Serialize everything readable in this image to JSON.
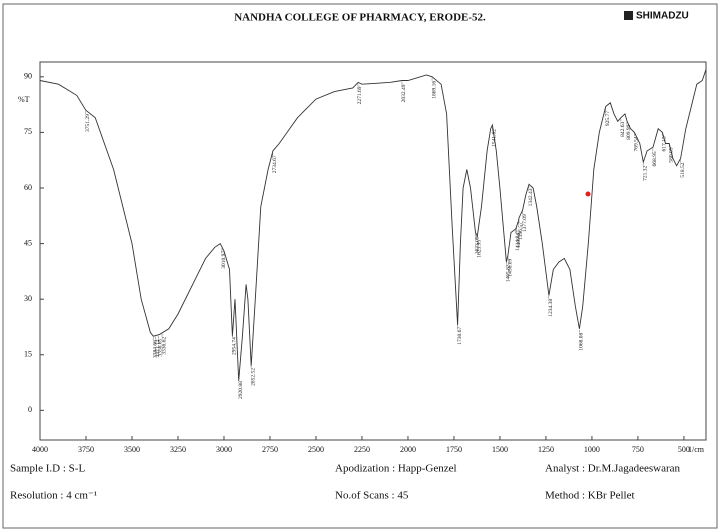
{
  "header": {
    "title": "NANDHA COLLEGE OF PHARMACY, ERODE-52.",
    "brand": "SHIMADZU"
  },
  "chart_data": {
    "type": "line",
    "y_label": "%T",
    "x_label": "1/cm",
    "color": "#333333",
    "x": [
      4000,
      3900,
      3850,
      3800,
      3751,
      3700,
      3600,
      3500,
      3450,
      3400,
      3384,
      3350,
      3300,
      3250,
      3200,
      3150,
      3100,
      3050,
      3020,
      3000,
      2970,
      2954,
      2940,
      2920,
      2900,
      2880,
      2870,
      2852,
      2830,
      2800,
      2760,
      2734,
      2700,
      2600,
      2500,
      2400,
      2300,
      2271,
      2250,
      2100,
      2032,
      2000,
      1900,
      1869,
      1820,
      1790,
      1760,
      1730,
      1715,
      1700,
      1680,
      1660,
      1633,
      1623,
      1600,
      1570,
      1550,
      1541,
      1520,
      1500,
      1465,
      1456,
      1440,
      1414,
      1400,
      1396,
      1377,
      1360,
      1342,
      1320,
      1300,
      1270,
      1234,
      1210,
      1180,
      1150,
      1120,
      1090,
      1068,
      1050,
      1020,
      990,
      960,
      925,
      900,
      880,
      860,
      842,
      820,
      809,
      790,
      769,
      740,
      721,
      700,
      668,
      640,
      617,
      600,
      580,
      560,
      540,
      518,
      490,
      460,
      430,
      400,
      380
    ],
    "values": [
      89,
      88,
      86.5,
      85,
      81,
      79,
      65,
      45,
      30,
      21,
      20,
      20.5,
      22,
      26,
      31,
      36,
      41,
      44,
      45,
      43,
      38,
      20,
      30,
      8,
      20,
      34,
      30,
      12,
      30,
      55,
      65,
      70,
      72,
      79,
      84,
      86,
      87,
      88.5,
      88,
      88.5,
      89,
      89,
      90.5,
      90,
      88,
      80,
      50,
      23,
      45,
      60,
      65,
      60,
      48,
      47,
      55,
      70,
      76,
      77,
      70,
      60,
      40,
      42,
      48,
      49,
      51,
      52,
      54,
      58,
      61,
      60,
      55,
      45,
      31,
      38,
      40,
      41,
      38,
      28,
      22,
      28,
      45,
      65,
      75,
      82,
      83,
      80,
      78,
      79,
      80,
      78,
      76,
      75,
      72,
      67,
      70,
      71,
      76,
      75,
      72,
      72,
      68,
      66,
      68,
      76,
      82,
      88,
      89,
      92
    ],
    "peaks": [
      3751.29,
      3384.66,
      3371.12,
      3356.65,
      3336.62,
      3010.97,
      2954.74,
      2920.88,
      2852.52,
      2734.67,
      2271.69,
      2032.49,
      1869.16,
      1730.67,
      1633.09,
      1623.95,
      1541.02,
      1465.83,
      1456.09,
      1414.84,
      1409.47,
      1396.57,
      1377.09,
      1342.43,
      1234.38,
      1068.08,
      925.77,
      842.63,
      809.99,
      769.54,
      721.32,
      668.95,
      617.15,
      580.05,
      518.52
    ],
    "xlim": [
      4000,
      380
    ],
    "ylim": [
      -8,
      94
    ],
    "xticks": [
      4000,
      3750,
      3500,
      3250,
      3000,
      2750,
      2500,
      2250,
      2000,
      1750,
      1500,
      1250,
      1000,
      750,
      500
    ],
    "yticks": [
      0,
      15,
      30,
      45,
      60,
      75,
      90
    ]
  },
  "footer": {
    "sample": "Sample I.D :  S-L",
    "resolution": "Resolution  : 4 cm⁻¹",
    "apodization": "Apodization  : Happ-Genzel",
    "scans": "No.of  Scans  : 45",
    "analyst": "Analyst : Dr.M.Jagadeeswaran",
    "method": "Method  : KBr Pellet"
  }
}
